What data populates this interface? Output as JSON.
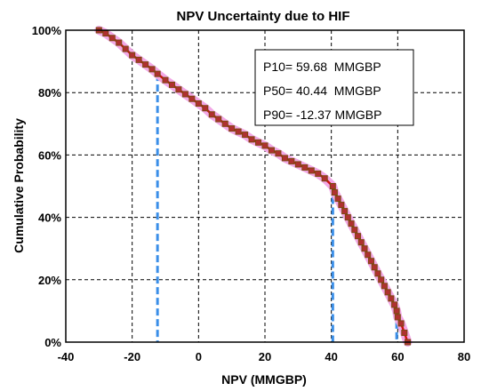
{
  "chart_data": {
    "type": "line",
    "title": "NPV Uncertainty due to HIF",
    "xlabel": "NPV (MMGBP)",
    "ylabel": "Cumulative Probability",
    "xlim": [
      -40,
      80
    ],
    "ylim": [
      0,
      100
    ],
    "x_ticks": [
      "-40",
      "-20",
      "0",
      "20",
      "40",
      "60",
      "80"
    ],
    "y_ticks": [
      "0%",
      "20%",
      "40%",
      "60%",
      "80%",
      "100%"
    ],
    "grid": true,
    "colors": {
      "line": "#d01010",
      "marker_fill": "#b03030",
      "marker_edge": "#7a4a10",
      "halo": "#f2a8e6",
      "percentile_lines": "#3a8ee8"
    },
    "series": [
      {
        "x": [
          -30,
          -28,
          -26,
          -24,
          -22,
          -20,
          -18,
          -16,
          -14,
          -12.37,
          -10,
          -8,
          -6,
          -4,
          -2,
          0,
          2,
          4,
          6,
          8,
          10,
          12,
          14,
          16,
          18,
          20,
          22,
          24,
          26,
          28,
          30,
          32,
          34,
          36,
          38,
          40.44,
          41,
          42,
          43,
          44,
          45,
          46,
          47,
          48,
          49,
          50,
          51,
          52,
          53,
          54,
          55,
          56,
          57,
          58,
          59,
          59.68,
          60,
          61,
          62,
          63
        ],
        "y": [
          100,
          99,
          97.5,
          96,
          94,
          92,
          90.5,
          89,
          87.5,
          86,
          84,
          82.5,
          81,
          79.5,
          78,
          76.5,
          75,
          73,
          71.5,
          70,
          68.5,
          67.5,
          66.5,
          65,
          64,
          63,
          61.5,
          60.5,
          59,
          58,
          57,
          56,
          55,
          54,
          52.5,
          50,
          48,
          46,
          44,
          42,
          40,
          38,
          36,
          34,
          32,
          30,
          28,
          26,
          24,
          22,
          20,
          18,
          16,
          14,
          12,
          10,
          8,
          6,
          3,
          0
        ]
      }
    ],
    "percentiles": {
      "x": [
        -12.37,
        40.44,
        59.68
      ],
      "y": [
        86,
        50,
        10
      ]
    },
    "annotation_lines": [
      "P10= 59.68  MMGBP",
      "P50= 40.44  MMGBP",
      "P90= -12.37 MMGBP"
    ]
  }
}
